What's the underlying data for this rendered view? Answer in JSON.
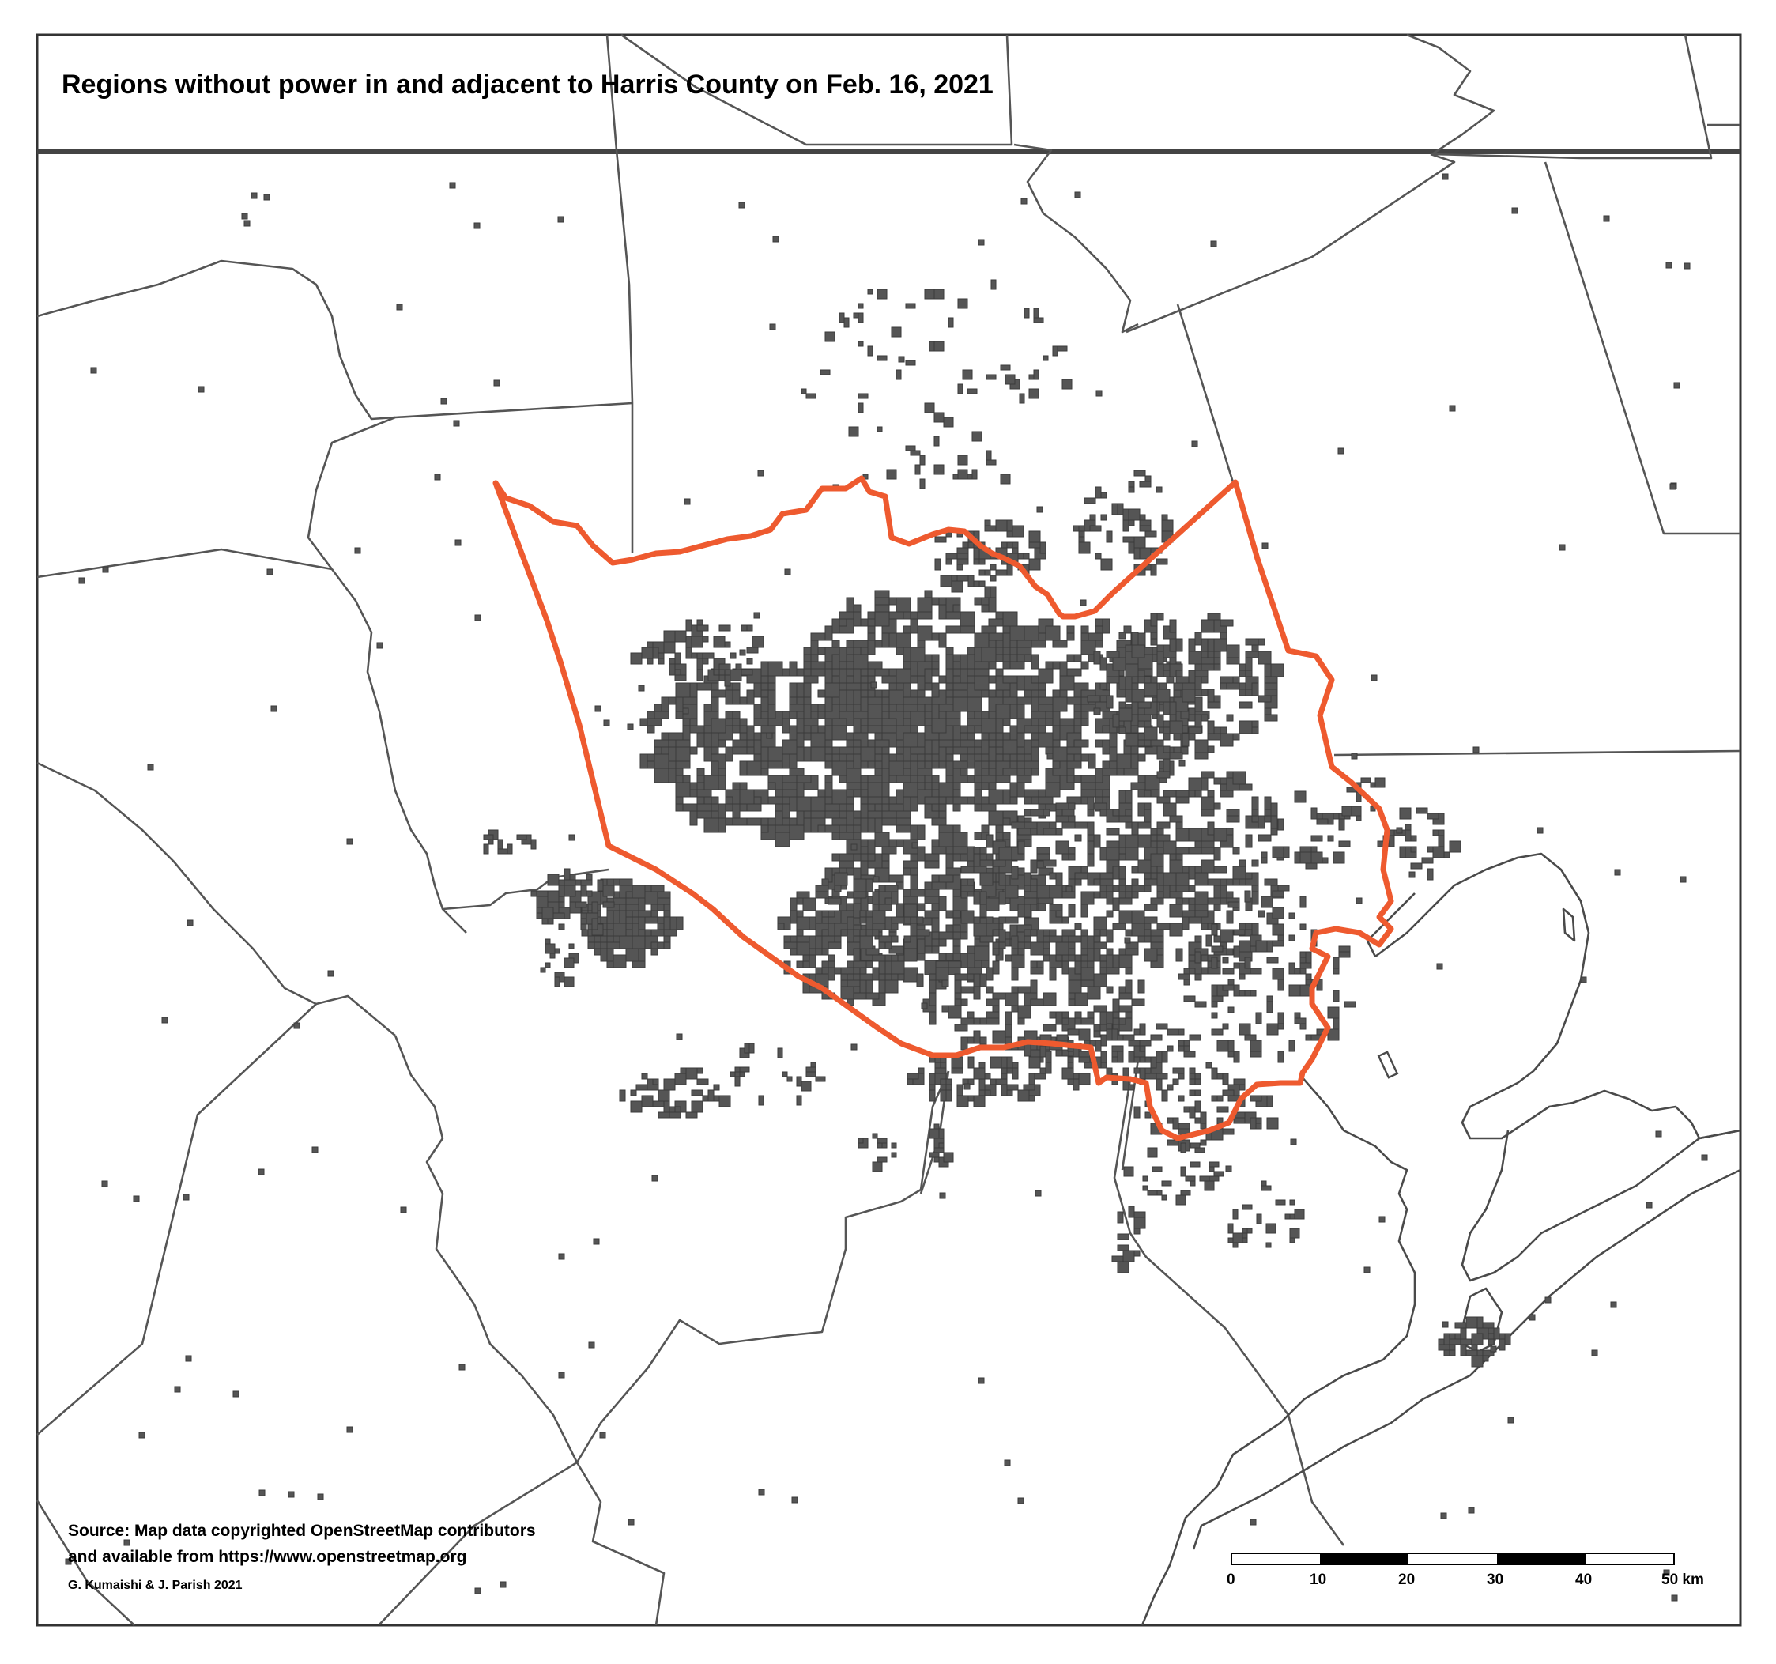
{
  "map": {
    "title": "Regions without power in and adjacent to Harris County on Feb. 16, 2021",
    "source_line_1": "Source: Map data copyrighted OpenStreetMap contributors",
    "source_line_2": "and available from https://www.openstreetmap.org",
    "credit": "G. Kumaishi & J. Parish 2021",
    "outline_color": "#ee5a2f",
    "outage_color": "#555555",
    "boundary_color": "#555555"
  },
  "scale_bar": {
    "unit": "km",
    "ticks": [
      "0",
      "10",
      "20",
      "30",
      "40",
      "50 km"
    ]
  }
}
